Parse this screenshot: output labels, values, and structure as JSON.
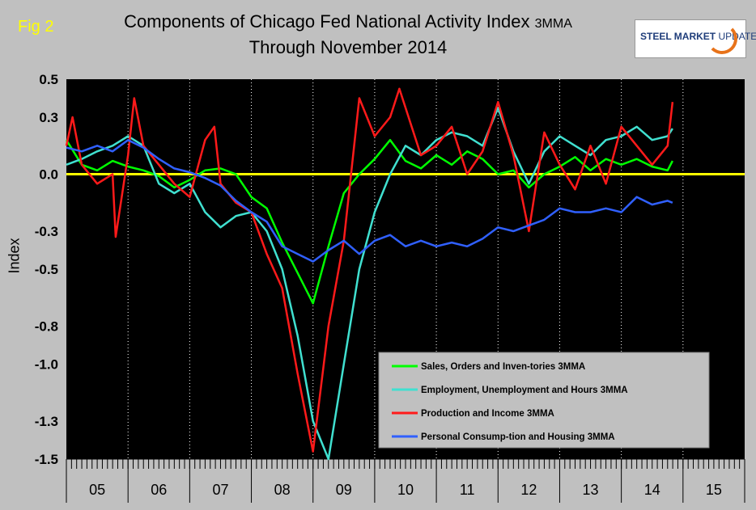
{
  "figure_label": "Fig 2",
  "title_main": "Components of Chicago Fed National Activity Index",
  "title_suffix": "3MMA",
  "subtitle": "Through November 2014",
  "logo": {
    "text_bold": "STEEL MARKET",
    "text_light": "UPDATE",
    "accent": "#e8731a"
  },
  "colors": {
    "plot_bg": "#000000",
    "page_bg": "#c0c0c0",
    "zero_line": "#ffff00",
    "sales": "#00ff00",
    "employment": "#40e0d0",
    "production": "#ff1a1a",
    "consumption": "#3060ff"
  },
  "chart_data": {
    "type": "line",
    "title": "Components of Chicago Fed National Activity Index 3MMA",
    "subtitle": "Through November 2014",
    "ylabel": "Index",
    "xlabel": "",
    "ylim": [
      -1.5,
      0.5
    ],
    "yticks": [
      0.5,
      0.3,
      0.0,
      -0.3,
      -0.5,
      -0.8,
      -1.0,
      -1.3,
      -1.5
    ],
    "ytick_labels": [
      "0.5",
      "0.3",
      "0.0",
      "-0.3",
      "-0.5",
      "-0.8",
      "-1.0",
      "-1.3",
      "-1.5"
    ],
    "x_start": "2005-01",
    "x_end": "2015-12",
    "x_categories": [
      "05",
      "06",
      "07",
      "08",
      "09",
      "10",
      "11",
      "12",
      "13",
      "14",
      "15"
    ],
    "gridlines": "vertical, yearly, dotted",
    "zero_line": 0,
    "legend": {
      "position": "bottom-right",
      "entries": [
        "Sales, Orders and Inven-tories 3MMA",
        "Employment, Unemployment and Hours 3MMA",
        "Production and Income 3MMA",
        "Personal Consump-tion and Housing 3MMA"
      ]
    },
    "series": [
      {
        "name": "Sales, Orders and Inven-tories 3MMA",
        "key": "sales",
        "points": [
          [
            2005.0,
            0.18
          ],
          [
            2005.25,
            0.05
          ],
          [
            2005.5,
            0.02
          ],
          [
            2005.75,
            0.07
          ],
          [
            2006.0,
            0.04
          ],
          [
            2006.25,
            0.02
          ],
          [
            2006.5,
            -0.01
          ],
          [
            2006.75,
            -0.07
          ],
          [
            2007.0,
            -0.03
          ],
          [
            2007.25,
            0.02
          ],
          [
            2007.5,
            0.03
          ],
          [
            2007.75,
            0.0
          ],
          [
            2008.0,
            -0.12
          ],
          [
            2008.25,
            -0.18
          ],
          [
            2008.5,
            -0.36
          ],
          [
            2008.75,
            -0.52
          ],
          [
            2009.0,
            -0.68
          ],
          [
            2009.25,
            -0.38
          ],
          [
            2009.5,
            -0.1
          ],
          [
            2009.75,
            0.0
          ],
          [
            2010.0,
            0.08
          ],
          [
            2010.25,
            0.18
          ],
          [
            2010.5,
            0.07
          ],
          [
            2010.75,
            0.03
          ],
          [
            2011.0,
            0.1
          ],
          [
            2011.25,
            0.05
          ],
          [
            2011.5,
            0.12
          ],
          [
            2011.75,
            0.08
          ],
          [
            2012.0,
            0.0
          ],
          [
            2012.25,
            0.02
          ],
          [
            2012.5,
            -0.07
          ],
          [
            2012.75,
            0.0
          ],
          [
            2013.0,
            0.04
          ],
          [
            2013.25,
            0.09
          ],
          [
            2013.5,
            0.02
          ],
          [
            2013.75,
            0.08
          ],
          [
            2014.0,
            0.05
          ],
          [
            2014.25,
            0.08
          ],
          [
            2014.5,
            0.04
          ],
          [
            2014.75,
            0.02
          ],
          [
            2014.83,
            0.07
          ]
        ]
      },
      {
        "name": "Employment, Unemployment and Hours 3MMA",
        "key": "employment",
        "points": [
          [
            2005.0,
            0.05
          ],
          [
            2005.25,
            0.08
          ],
          [
            2005.5,
            0.12
          ],
          [
            2005.75,
            0.15
          ],
          [
            2006.0,
            0.2
          ],
          [
            2006.25,
            0.15
          ],
          [
            2006.5,
            -0.05
          ],
          [
            2006.75,
            -0.1
          ],
          [
            2007.0,
            -0.05
          ],
          [
            2007.25,
            -0.2
          ],
          [
            2007.5,
            -0.28
          ],
          [
            2007.75,
            -0.22
          ],
          [
            2008.0,
            -0.2
          ],
          [
            2008.25,
            -0.3
          ],
          [
            2008.5,
            -0.5
          ],
          [
            2008.75,
            -0.85
          ],
          [
            2009.0,
            -1.3
          ],
          [
            2009.25,
            -1.5
          ],
          [
            2009.5,
            -1.0
          ],
          [
            2009.75,
            -0.5
          ],
          [
            2010.0,
            -0.2
          ],
          [
            2010.25,
            0.0
          ],
          [
            2010.5,
            0.15
          ],
          [
            2010.75,
            0.1
          ],
          [
            2011.0,
            0.18
          ],
          [
            2011.25,
            0.22
          ],
          [
            2011.5,
            0.2
          ],
          [
            2011.75,
            0.15
          ],
          [
            2012.0,
            0.35
          ],
          [
            2012.25,
            0.12
          ],
          [
            2012.5,
            -0.05
          ],
          [
            2012.75,
            0.12
          ],
          [
            2013.0,
            0.2
          ],
          [
            2013.25,
            0.15
          ],
          [
            2013.5,
            0.1
          ],
          [
            2013.75,
            0.18
          ],
          [
            2014.0,
            0.2
          ],
          [
            2014.25,
            0.25
          ],
          [
            2014.5,
            0.18
          ],
          [
            2014.75,
            0.2
          ],
          [
            2014.83,
            0.24
          ]
        ]
      },
      {
        "name": "Production and Income 3MMA",
        "key": "production",
        "points": [
          [
            2005.0,
            0.15
          ],
          [
            2005.1,
            0.3
          ],
          [
            2005.25,
            0.05
          ],
          [
            2005.5,
            -0.05
          ],
          [
            2005.75,
            0.0
          ],
          [
            2005.8,
            -0.33
          ],
          [
            2006.0,
            0.1
          ],
          [
            2006.1,
            0.4
          ],
          [
            2006.25,
            0.15
          ],
          [
            2006.5,
            0.05
          ],
          [
            2006.75,
            -0.05
          ],
          [
            2007.0,
            -0.12
          ],
          [
            2007.25,
            0.18
          ],
          [
            2007.4,
            0.25
          ],
          [
            2007.5,
            -0.05
          ],
          [
            2007.75,
            -0.15
          ],
          [
            2008.0,
            -0.2
          ],
          [
            2008.25,
            -0.42
          ],
          [
            2008.5,
            -0.6
          ],
          [
            2008.75,
            -1.05
          ],
          [
            2009.0,
            -1.46
          ],
          [
            2009.25,
            -0.8
          ],
          [
            2009.5,
            -0.35
          ],
          [
            2009.75,
            0.4
          ],
          [
            2010.0,
            0.2
          ],
          [
            2010.25,
            0.3
          ],
          [
            2010.4,
            0.45
          ],
          [
            2010.5,
            0.35
          ],
          [
            2010.75,
            0.1
          ],
          [
            2011.0,
            0.15
          ],
          [
            2011.25,
            0.25
          ],
          [
            2011.5,
            0.0
          ],
          [
            2011.75,
            0.12
          ],
          [
            2012.0,
            0.38
          ],
          [
            2012.25,
            0.1
          ],
          [
            2012.5,
            -0.3
          ],
          [
            2012.75,
            0.22
          ],
          [
            2013.0,
            0.05
          ],
          [
            2013.25,
            -0.08
          ],
          [
            2013.5,
            0.15
          ],
          [
            2013.75,
            -0.05
          ],
          [
            2014.0,
            0.25
          ],
          [
            2014.25,
            0.15
          ],
          [
            2014.5,
            0.05
          ],
          [
            2014.75,
            0.15
          ],
          [
            2014.83,
            0.38
          ]
        ]
      },
      {
        "name": "Personal Consump-tion and Housing 3MMA",
        "key": "consumption",
        "points": [
          [
            2005.0,
            0.14
          ],
          [
            2005.25,
            0.12
          ],
          [
            2005.5,
            0.15
          ],
          [
            2005.75,
            0.12
          ],
          [
            2006.0,
            0.18
          ],
          [
            2006.25,
            0.14
          ],
          [
            2006.5,
            0.08
          ],
          [
            2006.75,
            0.03
          ],
          [
            2007.0,
            0.01
          ],
          [
            2007.25,
            -0.02
          ],
          [
            2007.5,
            -0.06
          ],
          [
            2007.75,
            -0.14
          ],
          [
            2008.0,
            -0.2
          ],
          [
            2008.25,
            -0.25
          ],
          [
            2008.5,
            -0.38
          ],
          [
            2008.75,
            -0.42
          ],
          [
            2009.0,
            -0.46
          ],
          [
            2009.25,
            -0.4
          ],
          [
            2009.5,
            -0.35
          ],
          [
            2009.75,
            -0.42
          ],
          [
            2010.0,
            -0.35
          ],
          [
            2010.25,
            -0.32
          ],
          [
            2010.5,
            -0.38
          ],
          [
            2010.75,
            -0.35
          ],
          [
            2011.0,
            -0.38
          ],
          [
            2011.25,
            -0.36
          ],
          [
            2011.5,
            -0.38
          ],
          [
            2011.75,
            -0.34
          ],
          [
            2012.0,
            -0.28
          ],
          [
            2012.25,
            -0.3
          ],
          [
            2012.5,
            -0.27
          ],
          [
            2012.75,
            -0.24
          ],
          [
            2013.0,
            -0.18
          ],
          [
            2013.25,
            -0.2
          ],
          [
            2013.5,
            -0.2
          ],
          [
            2013.75,
            -0.18
          ],
          [
            2014.0,
            -0.2
          ],
          [
            2014.25,
            -0.12
          ],
          [
            2014.5,
            -0.16
          ],
          [
            2014.75,
            -0.14
          ],
          [
            2014.83,
            -0.15
          ]
        ]
      }
    ]
  }
}
